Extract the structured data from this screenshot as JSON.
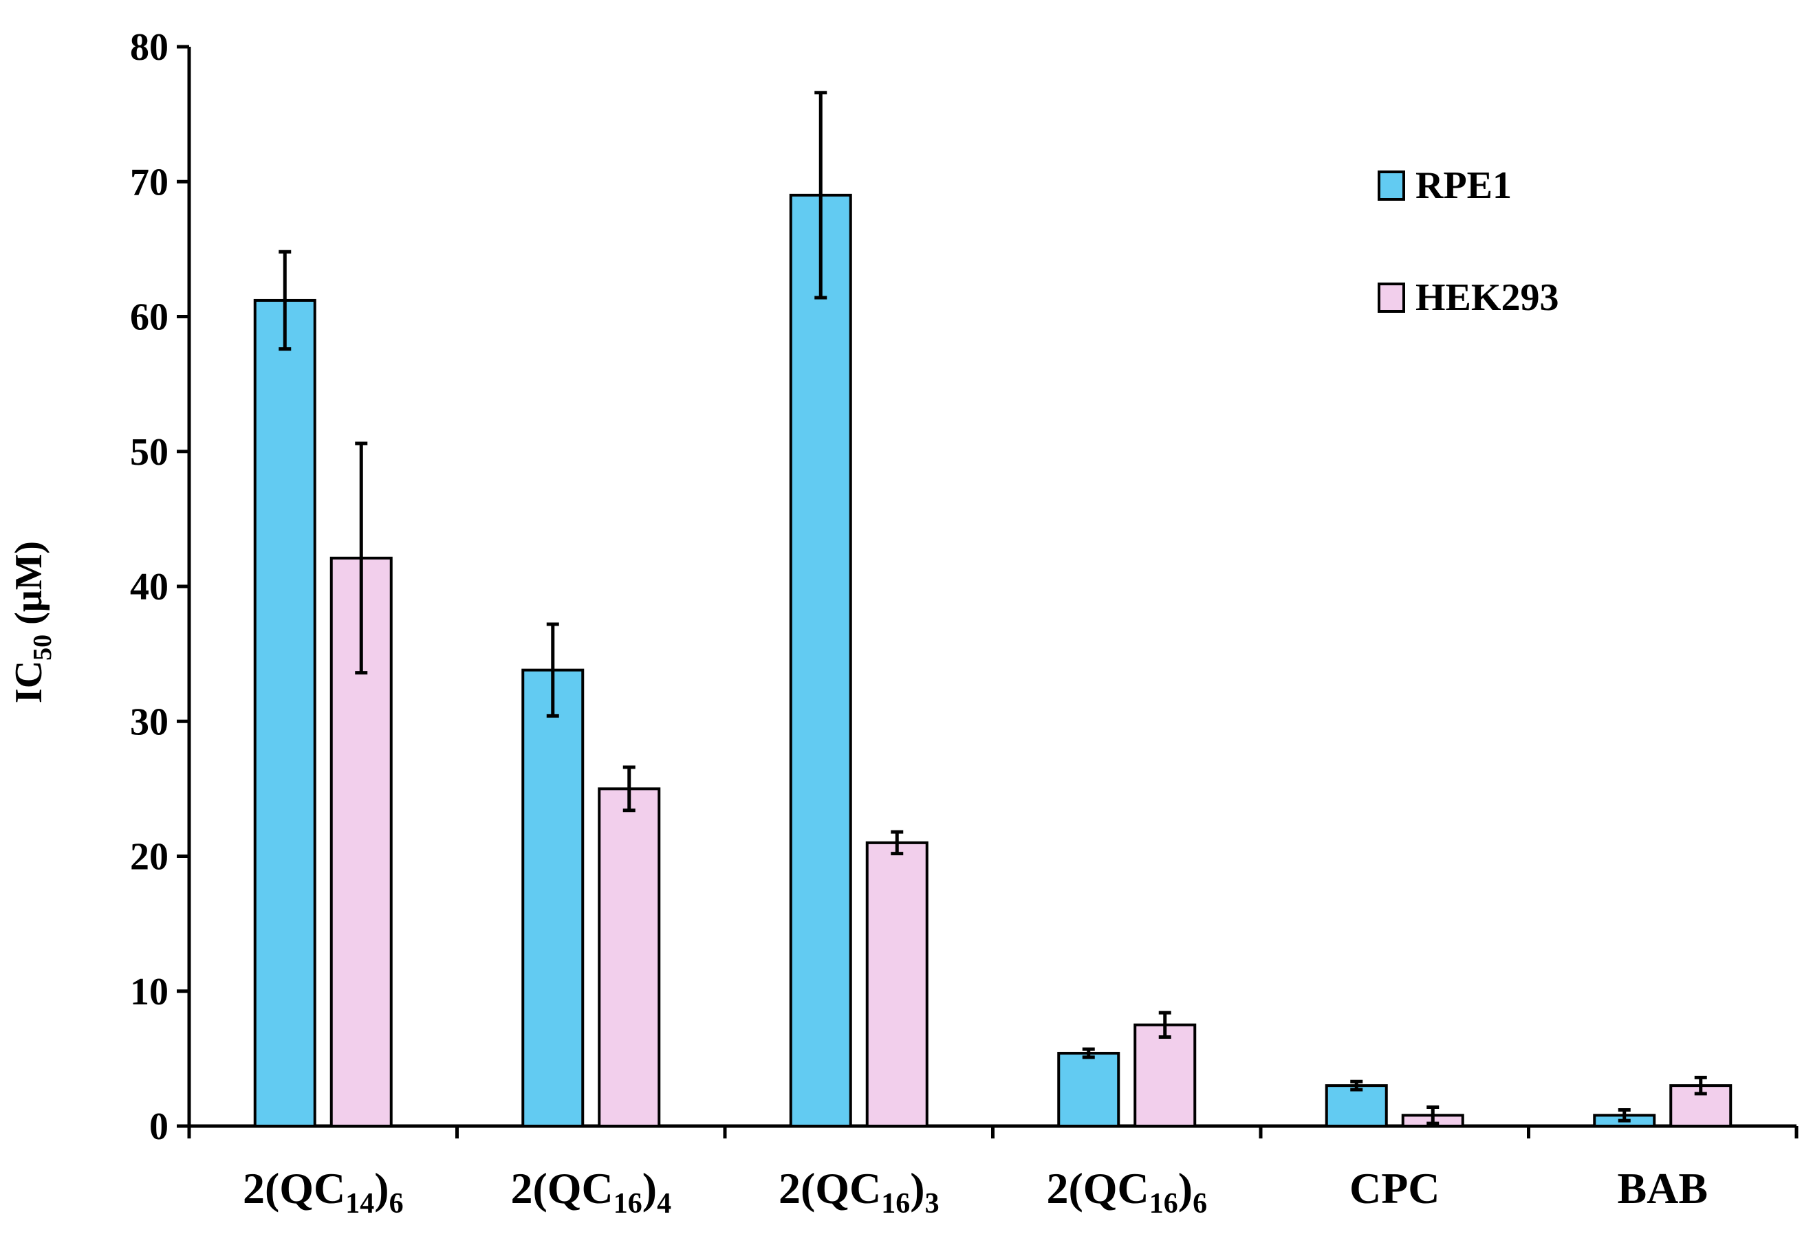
{
  "chart_data": {
    "type": "bar",
    "title": "",
    "xlabel": "",
    "ylabel": {
      "main": "IC",
      "sub": "50",
      "rest": " (μM)"
    },
    "ylim": [
      0,
      80
    ],
    "yticks": [
      0,
      10,
      20,
      30,
      40,
      50,
      60,
      70,
      80
    ],
    "grid": false,
    "legend_position": "top-right",
    "categories": [
      {
        "prefix": "2(QC",
        "sub1": "14",
        "mid": ")",
        "sub2": "6"
      },
      {
        "prefix": "2(QC",
        "sub1": "16",
        "mid": ")",
        "sub2": "4"
      },
      {
        "prefix": "2(QC",
        "sub1": "16",
        "mid": ")",
        "sub2": "3"
      },
      {
        "prefix": "2(QC",
        "sub1": "16",
        "mid": ")",
        "sub2": "6"
      },
      {
        "prefix": "CPC",
        "sub1": "",
        "mid": "",
        "sub2": ""
      },
      {
        "prefix": "BAB",
        "sub1": "",
        "mid": "",
        "sub2": ""
      }
    ],
    "series": [
      {
        "name": "RPE1",
        "color": "#62CBF2",
        "values": [
          61.2,
          33.8,
          69.0,
          5.4,
          3.0,
          0.8
        ],
        "errors": [
          3.6,
          3.4,
          7.6,
          0.3,
          0.3,
          0.4
        ]
      },
      {
        "name": "HEK293",
        "color": "#F2CFEC",
        "values": [
          42.1,
          25.0,
          21.0,
          7.5,
          0.8,
          3.0
        ],
        "errors": [
          8.5,
          1.6,
          0.8,
          0.9,
          0.6,
          0.6
        ]
      }
    ]
  }
}
